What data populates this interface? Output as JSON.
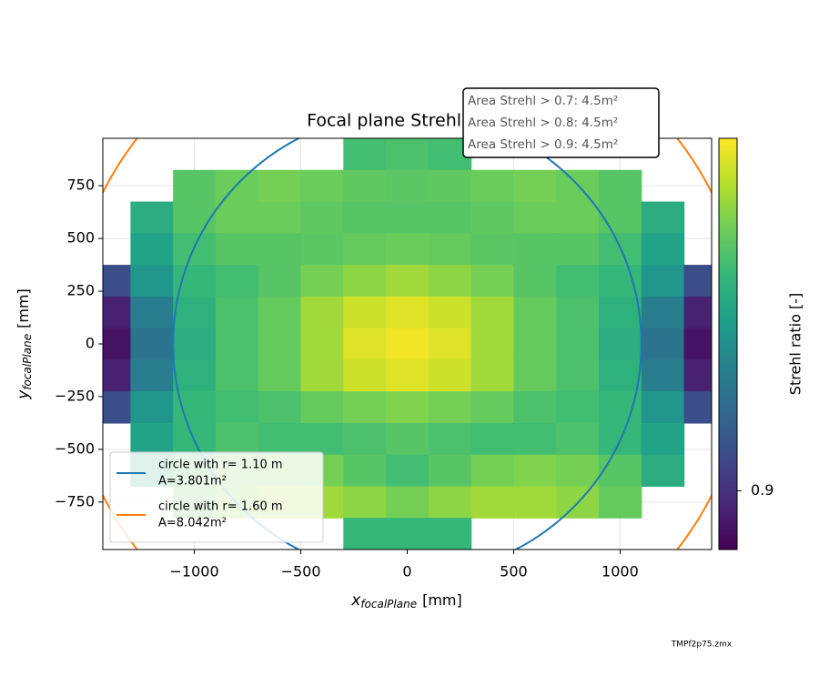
{
  "chart_data": {
    "type": "heatmap",
    "title": "Focal plane Strehl ratio",
    "xlabel": {
      "main": "x",
      "sub": "focalPlane",
      "unit": "[mm]"
    },
    "ylabel": {
      "main": "y",
      "sub": "focalPlane",
      "unit": "[mm]"
    },
    "xlim": [
      -1430,
      1430
    ],
    "ylim": [
      -975,
      975
    ],
    "xticks": [
      {
        "value": -1000,
        "label": "−1000"
      },
      {
        "value": -500,
        "label": "−500"
      },
      0,
      500,
      1000
    ],
    "yticks": [
      {
        "value": -750,
        "label": "−750"
      },
      {
        "value": -500,
        "label": "−500"
      },
      {
        "value": -250,
        "label": "−250"
      },
      0,
      250,
      500,
      750
    ],
    "grid": true,
    "colormap": "viridis",
    "cell_size": [
      200,
      150
    ],
    "x": [
      -1400,
      -1200,
      -1000,
      -800,
      -600,
      -400,
      -200,
      0,
      200,
      400,
      600,
      800,
      1000,
      1200,
      1400
    ],
    "y": [
      900,
      750,
      600,
      450,
      300,
      150,
      0,
      -150,
      -300,
      -450,
      -600,
      -750,
      -900
    ],
    "z": [
      [
        null,
        null,
        null,
        null,
        null,
        null,
        0.958,
        0.96,
        0.958,
        null,
        null,
        null,
        null,
        null,
        null
      ],
      [
        null,
        null,
        0.962,
        0.966,
        0.968,
        0.966,
        0.964,
        0.963,
        0.964,
        0.966,
        0.968,
        0.966,
        0.962,
        null,
        null
      ],
      [
        null,
        0.95,
        0.962,
        0.966,
        0.966,
        0.964,
        0.962,
        0.962,
        0.962,
        0.964,
        0.966,
        0.966,
        0.962,
        0.95,
        null
      ],
      [
        null,
        0.945,
        0.958,
        0.962,
        0.962,
        0.963,
        0.965,
        0.966,
        0.965,
        0.963,
        0.962,
        0.962,
        0.958,
        0.945,
        null
      ],
      [
        0.91,
        0.94,
        0.955,
        0.958,
        0.962,
        0.968,
        0.972,
        0.975,
        0.972,
        0.968,
        0.962,
        0.958,
        0.955,
        0.94,
        0.91
      ],
      [
        0.895,
        0.93,
        0.952,
        0.96,
        0.965,
        0.975,
        0.982,
        0.985,
        0.982,
        0.975,
        0.965,
        0.96,
        0.952,
        0.93,
        0.895
      ],
      [
        0.89,
        0.925,
        0.95,
        0.96,
        0.965,
        0.975,
        0.985,
        0.988,
        0.985,
        0.975,
        0.965,
        0.96,
        0.95,
        0.925,
        0.89
      ],
      [
        0.895,
        0.93,
        0.952,
        0.96,
        0.965,
        0.975,
        0.982,
        0.985,
        0.982,
        0.975,
        0.965,
        0.96,
        0.952,
        0.93,
        0.895
      ],
      [
        0.91,
        0.94,
        0.955,
        0.958,
        0.96,
        0.965,
        0.968,
        0.97,
        0.968,
        0.965,
        0.96,
        0.958,
        0.955,
        0.94,
        0.91
      ],
      [
        null,
        0.945,
        0.955,
        0.96,
        0.958,
        0.958,
        0.96,
        0.962,
        0.96,
        0.958,
        0.958,
        0.96,
        0.955,
        0.945,
        null
      ],
      [
        null,
        0.95,
        0.962,
        0.968,
        0.97,
        0.968,
        0.962,
        0.958,
        0.962,
        0.968,
        0.97,
        0.968,
        0.962,
        0.95,
        null
      ],
      [
        null,
        null,
        0.965,
        0.972,
        0.975,
        0.975,
        0.972,
        0.968,
        0.972,
        0.975,
        0.975,
        0.972,
        0.965,
        null,
        null
      ],
      [
        null,
        null,
        null,
        null,
        null,
        null,
        0.955,
        0.955,
        0.955,
        null,
        null,
        null,
        null,
        null,
        null
      ]
    ],
    "circles": [
      {
        "name": "circle with r= 1.10 m",
        "area_label": "A=3.801m²",
        "radius": 1100,
        "color": "#1f77b4"
      },
      {
        "name": "circle with r= 1.60 m",
        "area_label": "A=8.042m²",
        "radius": 1600,
        "color": "#ff7f0e"
      }
    ],
    "legend": "lower left",
    "annotation": [
      "Area Strehl > 0.7: 4.5m²",
      "Area Strehl > 0.8: 4.5m²",
      "Area Strehl > 0.9: 4.5m²"
    ],
    "colorbar": {
      "label": "Strehl ratio [-]",
      "lim": [
        0.885,
        0.99
      ],
      "ticks": [
        0.9
      ]
    },
    "footer": "TMPf2p75.zmx"
  }
}
